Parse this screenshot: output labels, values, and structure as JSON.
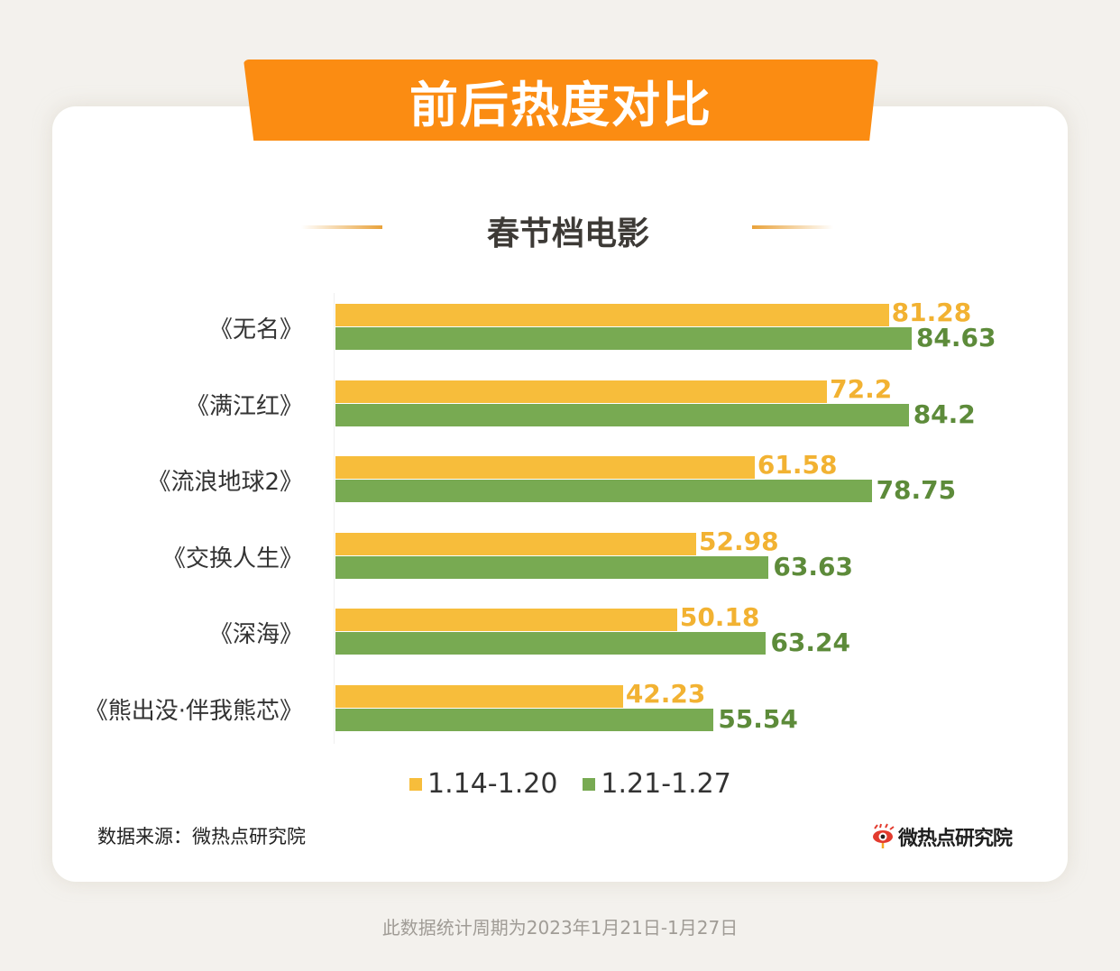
{
  "header": {
    "banner_title": "前后热度对比",
    "subtitle": "春节档电影"
  },
  "colors": {
    "banner": "#fb8c12",
    "series_1": "#f7bd3b",
    "series_2": "#78aa52",
    "series_1_label": "#f2b232",
    "series_2_label": "#5d8b3a",
    "background": "#f3f1ed"
  },
  "legend": [
    {
      "label": "1.14-1.20",
      "color": "#f7bd3b"
    },
    {
      "label": "1.21-1.27",
      "color": "#78aa52"
    }
  ],
  "footer": {
    "source": "数据来源：微热点研究院",
    "brand": "微热点研究院",
    "brand_icon": "weibo-eye-icon",
    "note": "此数据统计周期为2023年1月21日-1月27日"
  },
  "chart_data": {
    "type": "bar",
    "orientation": "horizontal",
    "title": "春节档电影",
    "xlabel": "",
    "ylabel": "",
    "categories": [
      "《无名》",
      "《满江红》",
      "《流浪地球2》",
      "《交换人生》",
      "《深海》",
      "《熊出没·伴我熊芯》"
    ],
    "series": [
      {
        "name": "1.14-1.20",
        "values": [
          81.28,
          72.2,
          61.58,
          52.98,
          50.18,
          42.23
        ]
      },
      {
        "name": "1.21-1.27",
        "values": [
          84.63,
          84.2,
          78.75,
          63.63,
          63.24,
          55.54
        ]
      }
    ],
    "value_labels": {
      "1.14-1.20": [
        "81.28",
        "72.2",
        "61.58",
        "52.98",
        "50.18",
        "42.23"
      ],
      "1.21-1.27": [
        "84.63",
        "84.2",
        "78.75",
        "63.63",
        "63.24",
        "55.54"
      ]
    },
    "xlim": [
      0,
      100
    ],
    "grid": false,
    "legend_position": "bottom"
  }
}
